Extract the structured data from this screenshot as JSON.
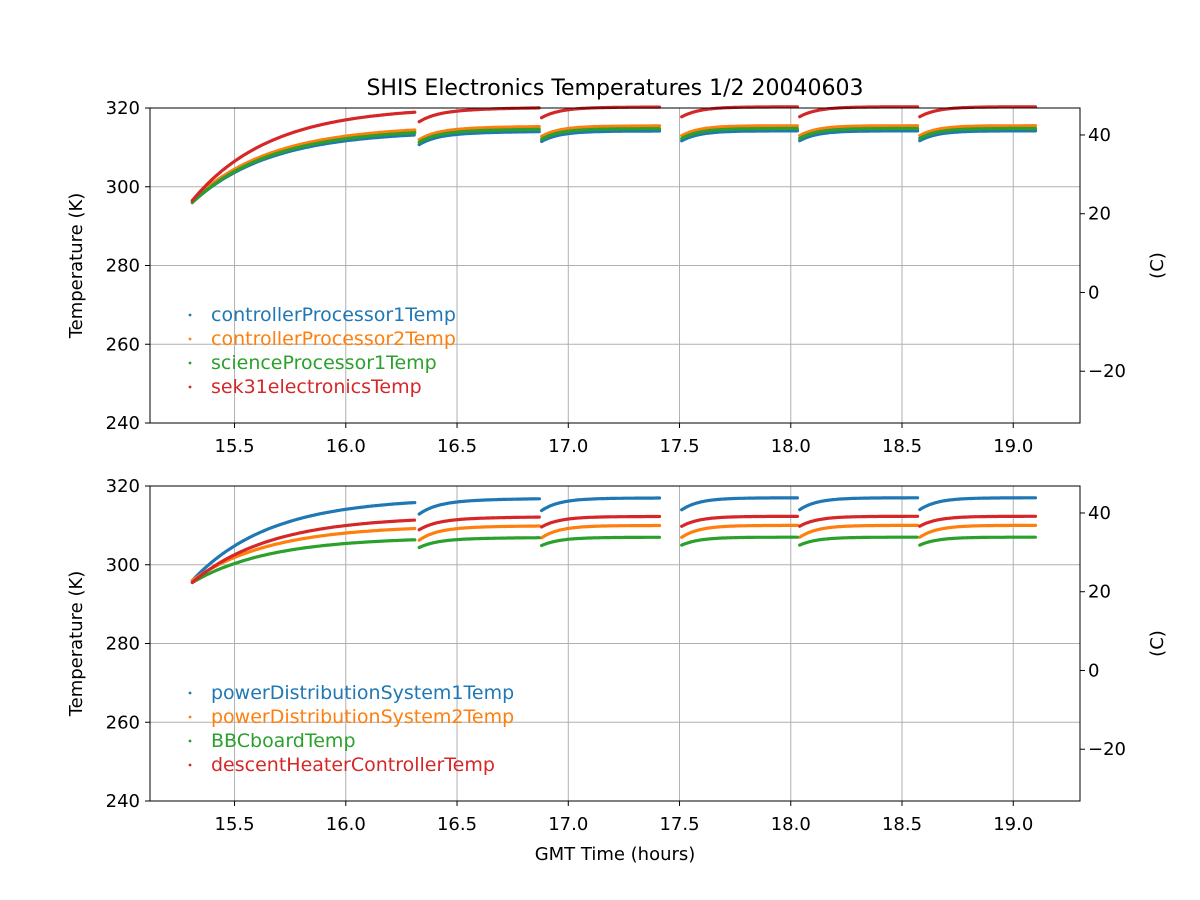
{
  "chart_data": {
    "title": "SHIS Electronics Temperatures 1/2 20040603",
    "xlabel": "GMT Time (hours)",
    "grid": true,
    "x_ticks": [
      "15.5",
      "16.0",
      "16.5",
      "17.0",
      "17.5",
      "18.0",
      "18.5",
      "19.0"
    ],
    "xlim": [
      15.12,
      19.3
    ],
    "segments": [
      [
        15.31,
        16.31
      ],
      [
        16.33,
        16.87
      ],
      [
        16.88,
        17.41
      ],
      [
        17.51,
        18.03
      ],
      [
        18.04,
        18.57
      ],
      [
        18.58,
        19.1
      ]
    ],
    "panels": [
      {
        "type": "scatter",
        "ylabel": "Temperature (K)",
        "ylabel_right": "(C)",
        "ylim": [
          240,
          320
        ],
        "y_ticks": [
          "240",
          "260",
          "280",
          "300",
          "320"
        ],
        "y_ticks_right": [
          "−20",
          "0",
          "20",
          "40"
        ],
        "legend_position": "lower-left",
        "series": [
          {
            "name": "controllerProcessor1Temp",
            "color": "#1f77b4",
            "start": 296,
            "plateau": 314.2,
            "restart_dip": 2.5
          },
          {
            "name": "controllerProcessor2Temp",
            "color": "#ff7f0e",
            "start": 296.5,
            "plateau": 315.5,
            "restart_dip": 2.5
          },
          {
            "name": "scienceProcessor1Temp",
            "color": "#2ca02c",
            "start": 296,
            "plateau": 314.8,
            "restart_dip": 2.5
          },
          {
            "name": "sek31electronicsTemp",
            "color": "#d62728",
            "start": 296.5,
            "plateau": 320.3,
            "restart_dip": 2.5
          }
        ]
      },
      {
        "type": "scatter",
        "ylabel": "Temperature (K)",
        "ylabel_right": "(C)",
        "ylim": [
          240,
          320
        ],
        "y_ticks": [
          "240",
          "260",
          "280",
          "300",
          "320"
        ],
        "y_ticks_right": [
          "−20",
          "0",
          "20",
          "40"
        ],
        "legend_position": "lower-left",
        "series": [
          {
            "name": "powerDistributionSystem1Temp",
            "color": "#1f77b4",
            "start": 296,
            "plateau": 317,
            "restart_dip": 3
          },
          {
            "name": "powerDistributionSystem2Temp",
            "color": "#ff7f0e",
            "start": 296,
            "plateau": 310,
            "restart_dip": 3
          },
          {
            "name": "BBCboardTemp",
            "color": "#2ca02c",
            "start": 295.5,
            "plateau": 307,
            "restart_dip": 2
          },
          {
            "name": "descentHeaterControllerTemp",
            "color": "#d62728",
            "start": 295.5,
            "plateau": 312.3,
            "restart_dip": 2.5
          }
        ]
      }
    ]
  }
}
